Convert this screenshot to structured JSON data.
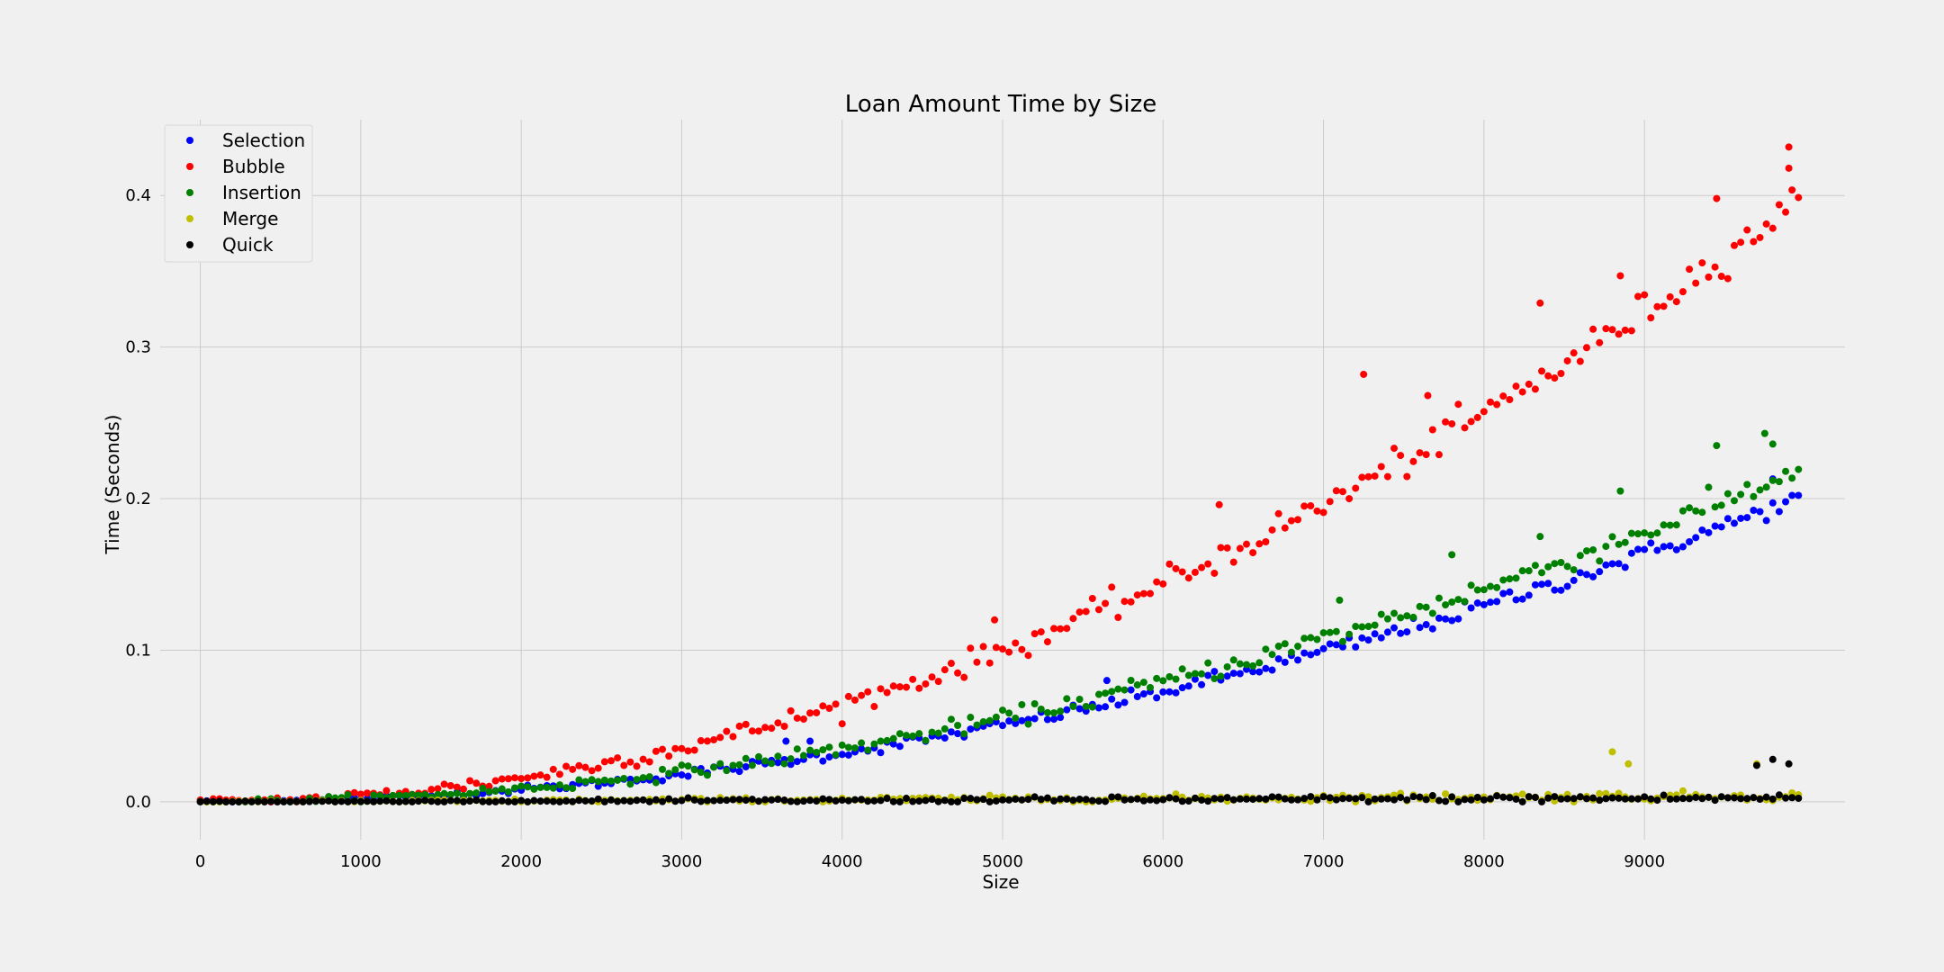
{
  "chart_data": {
    "type": "scatter",
    "title": "Loan Amount Time by Size",
    "xlabel": "Size",
    "ylabel": "Time (Seconds)",
    "xlim": [
      -250,
      10250
    ],
    "ylim": [
      -0.025,
      0.45
    ],
    "xticks": [
      0,
      1000,
      2000,
      3000,
      4000,
      5000,
      6000,
      7000,
      8000,
      9000
    ],
    "yticks": [
      0.0,
      0.1,
      0.2,
      0.3,
      0.4
    ],
    "grid": true,
    "legend_position": "top-left",
    "x_start": 0,
    "x_end": 9990,
    "x_step": 40,
    "series": [
      {
        "name": "Selection",
        "color": "#0000ff",
        "coef": 2.02e-09,
        "exponent": 2,
        "noise": 0.003,
        "outliers": [
          [
            3650,
            0.04
          ],
          [
            3800,
            0.04
          ],
          [
            5650,
            0.08
          ],
          [
            9800,
            0.213
          ]
        ]
      },
      {
        "name": "Bubble",
        "color": "#ff0000",
        "coef": 4e-09,
        "exponent": 2,
        "noise": 0.006,
        "outliers": [
          [
            4950,
            0.12
          ],
          [
            6350,
            0.196
          ],
          [
            7250,
            0.282
          ],
          [
            7650,
            0.268
          ],
          [
            8350,
            0.329
          ],
          [
            8850,
            0.347
          ],
          [
            9450,
            0.398
          ],
          [
            9900,
            0.432
          ],
          [
            9900,
            0.418
          ]
        ]
      },
      {
        "name": "Insertion",
        "color": "#008000",
        "coef": 2.2e-09,
        "exponent": 2,
        "noise": 0.004,
        "outliers": [
          [
            7100,
            0.133
          ],
          [
            7800,
            0.163
          ],
          [
            8350,
            0.175
          ],
          [
            8850,
            0.205
          ],
          [
            9450,
            0.235
          ],
          [
            9750,
            0.243
          ],
          [
            9800,
            0.236
          ]
        ]
      },
      {
        "name": "Merge",
        "color": "#bfbf00",
        "coef": 1e-07,
        "exponent": 1.15,
        "noise": 0.0015,
        "outliers": [
          [
            8800,
            0.033
          ],
          [
            8900,
            0.025
          ],
          [
            9700,
            0.025
          ]
        ]
      },
      {
        "name": "Quick",
        "color": "#000000",
        "coef": 1e-07,
        "exponent": 1.1,
        "noise": 0.0012,
        "outliers": [
          [
            9700,
            0.024
          ],
          [
            9800,
            0.028
          ],
          [
            9900,
            0.025
          ]
        ]
      }
    ]
  }
}
